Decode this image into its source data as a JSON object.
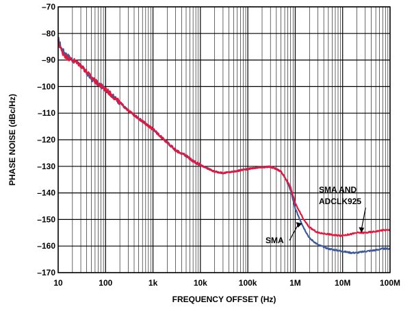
{
  "chart_data": {
    "type": "line",
    "title": "",
    "xlabel": "FREQUENCY OFFSET (Hz)",
    "ylabel": "PHASE NOISE (dBc/Hz)",
    "xscale": "log",
    "xlim": [
      10,
      100000000
    ],
    "ylim": [
      -170,
      -70
    ],
    "grid": true,
    "x_ticks": [
      10,
      100,
      1000,
      10000,
      100000,
      1000000,
      10000000,
      100000000
    ],
    "x_tick_labels": [
      "10",
      "100",
      "1k",
      "10k",
      "100k",
      "1M",
      "10M",
      "100M"
    ],
    "y_ticks": [
      -70,
      -80,
      -90,
      -100,
      -110,
      -120,
      -130,
      -140,
      -150,
      -160,
      -170
    ],
    "y_tick_labels": [
      "–70",
      "–80",
      "–90",
      "–100",
      "–110",
      "–120",
      "–130",
      "–140",
      "–150",
      "–160",
      "–170"
    ],
    "series": [
      {
        "name": "SMA",
        "color": "#3d5a9e",
        "x": [
          10,
          12,
          15,
          20,
          25,
          30,
          40,
          50,
          70,
          100,
          150,
          200,
          300,
          500,
          700,
          1000,
          1500,
          2000,
          3000,
          5000,
          7000,
          10000,
          15000,
          20000,
          30000,
          50000,
          70000,
          100000,
          150000,
          200000,
          300000,
          400000,
          500000,
          600000,
          800000,
          1000000,
          1500000,
          2000000,
          3000000,
          5000000,
          7000000,
          10000000,
          15000000,
          20000000,
          30000000,
          50000000,
          70000000,
          100000000
        ],
        "y": [
          -82,
          -86,
          -88,
          -90,
          -91,
          -92,
          -95,
          -97,
          -99,
          -101,
          -104,
          -106,
          -109,
          -112,
          -114,
          -116,
          -119,
          -121,
          -124,
          -126,
          -128,
          -129.5,
          -131,
          -132,
          -132.5,
          -132,
          -131.5,
          -131,
          -130.5,
          -130.3,
          -130.2,
          -131,
          -132,
          -134,
          -139,
          -146,
          -153,
          -157,
          -159.5,
          -161,
          -161.5,
          -162,
          -162.5,
          -162.5,
          -162,
          -161.5,
          -161,
          -161
        ]
      },
      {
        "name": "SMA AND ADCLK925",
        "color": "#e8143c",
        "x": [
          10,
          12,
          15,
          20,
          25,
          30,
          40,
          50,
          70,
          100,
          150,
          200,
          300,
          500,
          700,
          1000,
          1500,
          2000,
          3000,
          5000,
          7000,
          10000,
          15000,
          20000,
          30000,
          50000,
          70000,
          100000,
          150000,
          200000,
          300000,
          400000,
          500000,
          600000,
          800000,
          1000000,
          1500000,
          2000000,
          3000000,
          5000000,
          7000000,
          10000000,
          15000000,
          20000000,
          30000000,
          50000000,
          70000000,
          100000000
        ],
        "y": [
          -83,
          -87,
          -89,
          -90,
          -91,
          -92,
          -94.5,
          -96.5,
          -99,
          -101,
          -104,
          -106,
          -109,
          -112,
          -114,
          -116,
          -119,
          -121,
          -124,
          -126,
          -128,
          -129.5,
          -131,
          -132,
          -132.5,
          -132,
          -131.5,
          -131,
          -130.5,
          -130.3,
          -130.2,
          -131,
          -132,
          -134,
          -138,
          -144,
          -150,
          -153,
          -155,
          -155.5,
          -156,
          -156,
          -155.5,
          -155,
          -155,
          -154.5,
          -154,
          -154
        ]
      }
    ],
    "annotations": [
      {
        "text_lines": [
          "SMA AND",
          "ADCLK925"
        ],
        "target_series": "SMA AND ADCLK925"
      },
      {
        "text_lines": [
          "SMA"
        ],
        "target_series": "SMA"
      }
    ]
  }
}
